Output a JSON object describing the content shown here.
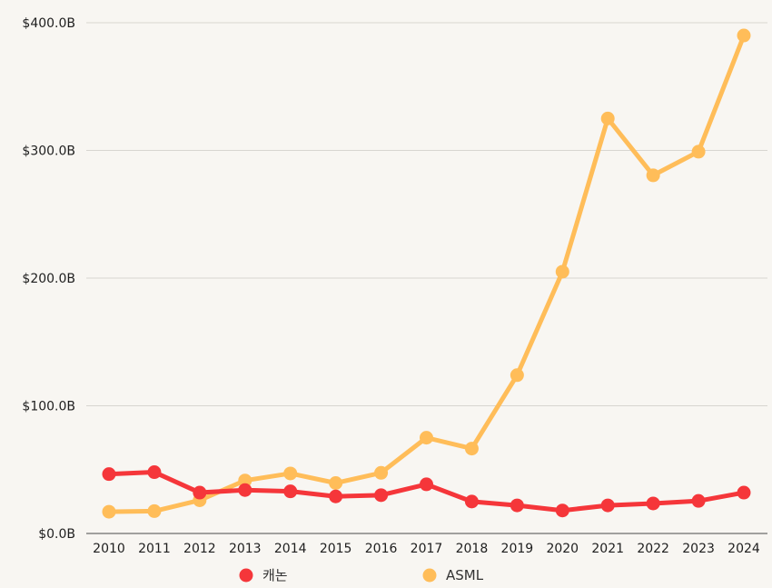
{
  "chart_data": {
    "type": "line",
    "title": "",
    "xlabel": "",
    "ylabel": "",
    "ylim": [
      0,
      400
    ],
    "y_ticks": [
      0,
      100,
      200,
      300,
      400
    ],
    "y_tick_labels": [
      "$0.0B",
      "$100.0B",
      "$200.0B",
      "$300.0B",
      "$400.0B"
    ],
    "categories": [
      "2010",
      "2011",
      "2012",
      "2013",
      "2014",
      "2015",
      "2016",
      "2017",
      "2018",
      "2019",
      "2020",
      "2021",
      "2022",
      "2023",
      "2024"
    ],
    "grid": true,
    "legend_position": "bottom",
    "series": [
      {
        "name": "캐논",
        "color": "#f5363a",
        "values": [
          46.5,
          48,
          32,
          34,
          33,
          29,
          30,
          38.5,
          25,
          22,
          18,
          22,
          23.5,
          25.5,
          32
        ]
      },
      {
        "name": "ASML",
        "color": "#ffbd59",
        "values": [
          17,
          17.5,
          26,
          41.5,
          47,
          39.5,
          47.5,
          75,
          66.5,
          124,
          205,
          325,
          280.5,
          299,
          390
        ]
      }
    ]
  }
}
